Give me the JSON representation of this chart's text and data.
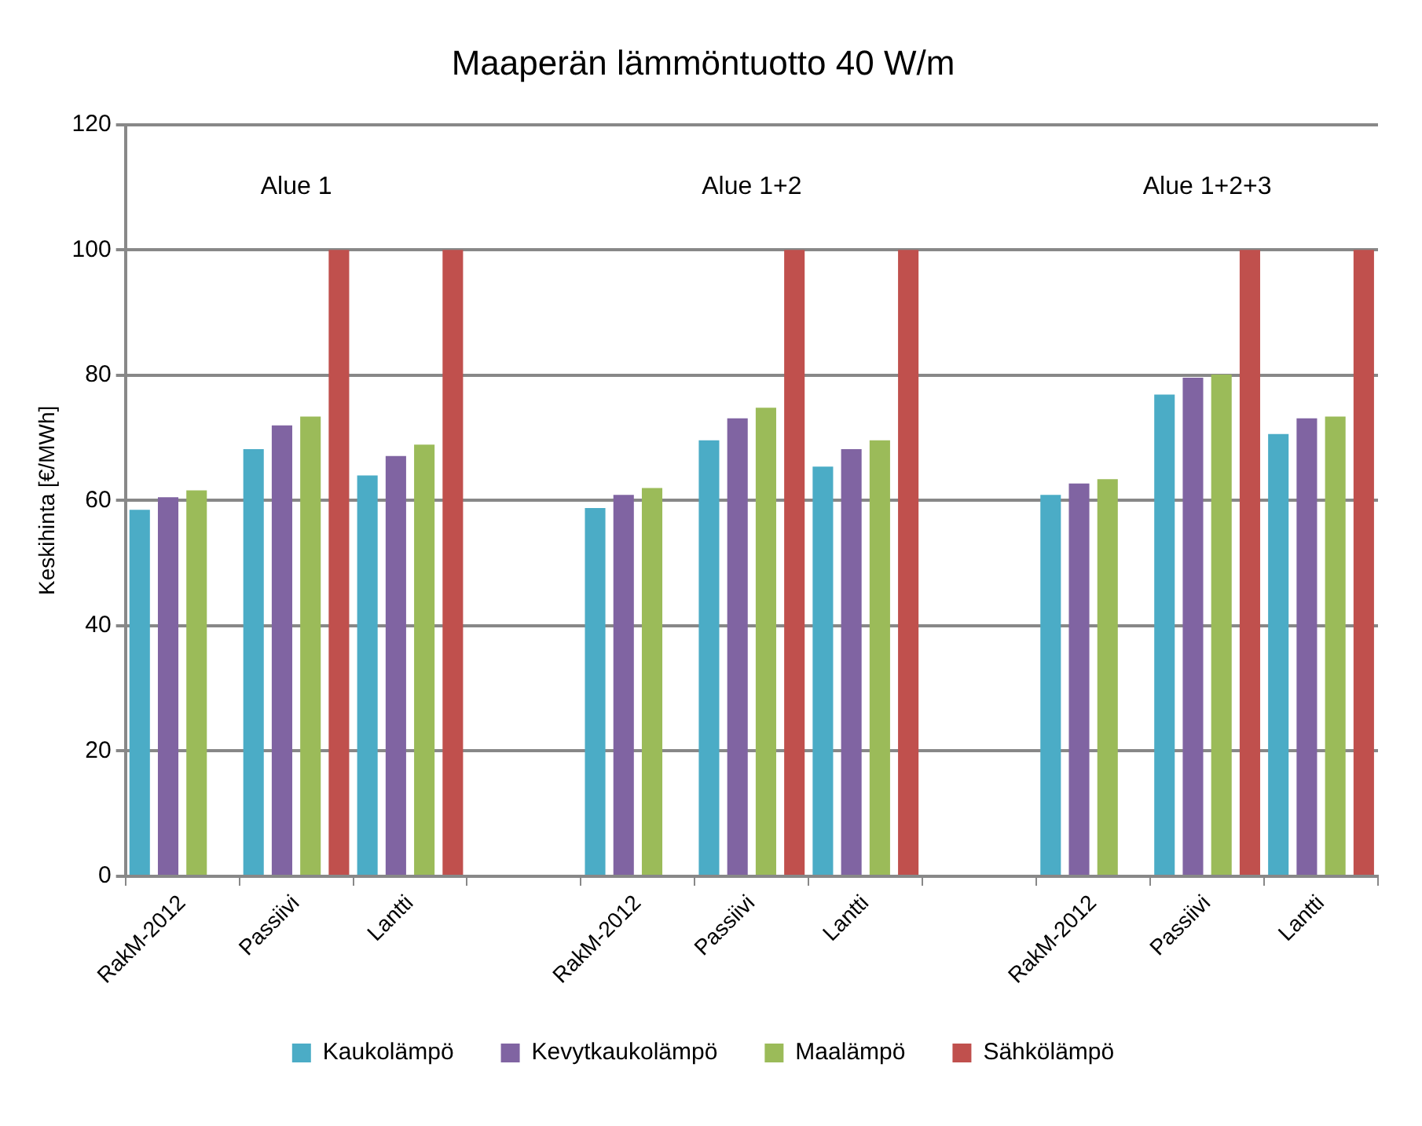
{
  "chart_data": {
    "type": "bar",
    "title": "Maaperän lämmöntuotto 40 W/m",
    "ylabel": "Keskihinta [€/MWh]",
    "categories": [
      "RakM-2012",
      "Passiivi",
      "Lantti",
      null,
      "RakM-2012",
      "Passiivi",
      "Lantti",
      null,
      "RakM-2012",
      "Passiivi",
      "Lantti"
    ],
    "series": [
      {
        "name": "Kaukolämpö",
        "color": "#4bacc6",
        "values": [
          58.5,
          68.2,
          64.0,
          null,
          58.8,
          69.6,
          65.4,
          null,
          60.9,
          76.9,
          70.6
        ]
      },
      {
        "name": "Kevytkaukolämpö",
        "color": "#8064a2",
        "values": [
          60.5,
          72.0,
          67.1,
          null,
          60.9,
          73.1,
          68.2,
          null,
          62.7,
          79.6,
          73.1
        ]
      },
      {
        "name": "Maalämpö",
        "color": "#9bbb59",
        "values": [
          61.6,
          73.4,
          68.9,
          null,
          62.0,
          74.8,
          69.6,
          null,
          63.4,
          80.1,
          73.4
        ]
      },
      {
        "name": "Sähkölämpö",
        "color": "#c0504d",
        "values": [
          null,
          100,
          100,
          null,
          null,
          100,
          100,
          null,
          null,
          100,
          100
        ]
      }
    ],
    "ylim": [
      0,
      120
    ],
    "yticks": [
      0,
      20,
      40,
      60,
      80,
      100,
      120
    ],
    "grid": "y",
    "legend": "bottom",
    "annotations": [
      "Alue 1",
      "Alue 1+2",
      "Alue 1+2+3"
    ]
  }
}
